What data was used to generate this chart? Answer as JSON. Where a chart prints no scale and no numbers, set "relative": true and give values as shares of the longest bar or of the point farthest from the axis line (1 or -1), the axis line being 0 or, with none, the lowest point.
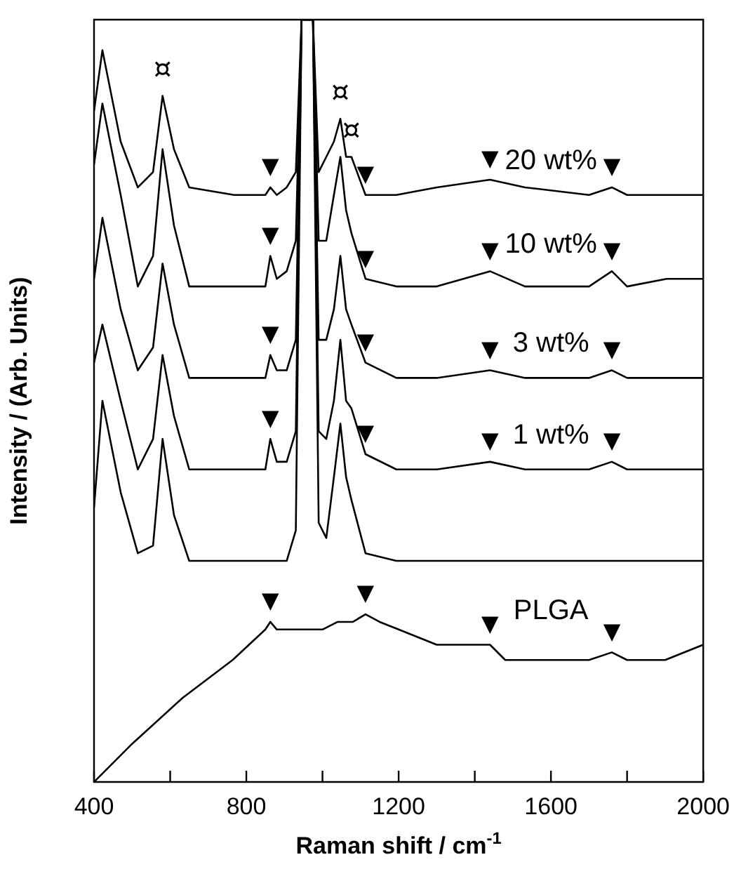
{
  "chart_data": {
    "type": "line",
    "relative": true,
    "xlabel": "Raman shift / cm$^{-1}$",
    "ylabel": "Intensity / (Arb. Units)",
    "xlim": [
      400,
      2000
    ],
    "xticks": [
      400,
      {
        "value": 600,
        "label": null
      },
      800,
      {
        "value": 1000,
        "label": null
      },
      1200,
      {
        "value": 1400,
        "label": null
      },
      1600,
      {
        "value": 1800,
        "label": null
      },
      2000
    ],
    "grid": false,
    "legend": false,
    "marker": "none",
    "line_style": "solid",
    "series": [
      {
        "name": "20 wt%",
        "color": "#000000",
        "x": [
          400,
          422,
          470,
          515,
          555,
          580,
          610,
          650,
          768,
          850,
          863,
          880,
          906,
          930,
          945,
          960,
          975,
          990,
          1010,
          1030,
          1047,
          1062,
          1076,
          1113,
          1194,
          1300,
          1440,
          1532,
          1700,
          1760,
          1800,
          1904,
          2000
        ],
        "values": [
          0.88,
          0.96,
          0.84,
          0.78,
          0.8,
          0.9,
          0.83,
          0.78,
          0.77,
          0.77,
          0.78,
          0.77,
          0.78,
          0.8,
          1,
          1,
          1,
          0.8,
          0.82,
          0.84,
          0.87,
          0.82,
          0.82,
          0.77,
          0.77,
          0.78,
          0.79,
          0.78,
          0.77,
          0.78,
          0.77,
          0.77,
          0.77
        ]
      },
      {
        "name": "10 wt%",
        "color": "#000000",
        "x": [
          400,
          422,
          470,
          515,
          555,
          580,
          610,
          650,
          768,
          850,
          863,
          880,
          906,
          930,
          945,
          960,
          975,
          990,
          1010,
          1030,
          1047,
          1062,
          1076,
          1113,
          1194,
          1300,
          1440,
          1532,
          1700,
          1760,
          1800,
          1904,
          2000
        ],
        "values": [
          0.81,
          0.89,
          0.77,
          0.65,
          0.69,
          0.83,
          0.73,
          0.65,
          0.65,
          0.65,
          0.69,
          0.66,
          0.67,
          0.71,
          1,
          1,
          1,
          0.71,
          0.71,
          0.77,
          0.82,
          0.75,
          0.72,
          0.66,
          0.65,
          0.65,
          0.67,
          0.65,
          0.65,
          0.67,
          0.65,
          0.66,
          0.66
        ]
      },
      {
        "name": "3 wt%",
        "color": "#000000",
        "x": [
          400,
          422,
          470,
          515,
          555,
          580,
          610,
          650,
          768,
          850,
          863,
          880,
          906,
          930,
          945,
          960,
          975,
          990,
          1010,
          1030,
          1047,
          1062,
          1076,
          1113,
          1194,
          1300,
          1440,
          1532,
          1700,
          1760,
          1800,
          1904,
          2000
        ],
        "values": [
          0.66,
          0.74,
          0.62,
          0.54,
          0.57,
          0.68,
          0.6,
          0.53,
          0.53,
          0.53,
          0.56,
          0.54,
          0.54,
          0.58,
          1,
          1,
          1,
          0.58,
          0.58,
          0.62,
          0.69,
          0.62,
          0.6,
          0.55,
          0.53,
          0.53,
          0.54,
          0.53,
          0.53,
          0.54,
          0.53,
          0.53,
          0.53
        ]
      },
      {
        "name": "1 wt%",
        "color": "#000000",
        "x": [
          400,
          422,
          470,
          515,
          555,
          580,
          610,
          650,
          768,
          850,
          863,
          880,
          906,
          930,
          945,
          960,
          975,
          990,
          1010,
          1030,
          1047,
          1062,
          1076,
          1113,
          1194,
          1300,
          1440,
          1532,
          1700,
          1760,
          1800,
          1904,
          2000
        ],
        "values": [
          0.55,
          0.6,
          0.5,
          0.41,
          0.45,
          0.56,
          0.48,
          0.41,
          0.41,
          0.41,
          0.45,
          0.42,
          0.42,
          0.46,
          1,
          1,
          1,
          0.46,
          0.45,
          0.5,
          0.58,
          0.5,
          0.49,
          0.43,
          0.41,
          0.41,
          0.42,
          0.41,
          0.41,
          0.42,
          0.41,
          0.41,
          0.41
        ]
      },
      {
        "color": "#000000",
        "x": [
          400,
          422,
          470,
          515,
          555,
          580,
          610,
          650,
          768,
          850,
          863,
          880,
          906,
          930,
          945,
          960,
          975,
          990,
          1010,
          1030,
          1047,
          1062,
          1076,
          1113,
          1194,
          1300,
          1440,
          1532,
          1700,
          1760,
          1800,
          1904,
          2000
        ],
        "values": [
          0.36,
          0.5,
          0.38,
          0.3,
          0.31,
          0.45,
          0.35,
          0.29,
          0.29,
          0.29,
          0.29,
          0.29,
          0.29,
          0.33,
          1,
          1,
          1,
          0.34,
          0.32,
          0.4,
          0.47,
          0.4,
          0.37,
          0.3,
          0.29,
          0.29,
          0.29,
          0.29,
          0.29,
          0.29,
          0.29,
          0.29,
          0.29
        ]
      },
      {
        "name": "PLGA",
        "color": "#000000",
        "x": [
          400,
          500,
          632,
          764,
          850,
          863,
          880,
          1000,
          1040,
          1080,
          1113,
          1150,
          1200,
          1300,
          1440,
          1480,
          1532,
          1700,
          1760,
          1800,
          1900,
          2000
        ],
        "values": [
          0,
          0.05,
          0.11,
          0.16,
          0.2,
          0.21,
          0.2,
          0.2,
          0.21,
          0.21,
          0.22,
          0.21,
          0.2,
          0.18,
          0.18,
          0.16,
          0.16,
          0.16,
          0.17,
          0.16,
          0.16,
          0.18
        ]
      }
    ],
    "annotations": [
      {
        "text": "¤",
        "x": 580,
        "y": 0.9
      },
      {
        "text": "¤",
        "x": 1047,
        "y": 0.87
      },
      {
        "text": "¤",
        "x": 1076,
        "y": 0.82
      },
      {
        "text": "▼",
        "x": 863,
        "y": 0.78
      },
      {
        "text": "▼",
        "x": 1113,
        "y": 0.77
      },
      {
        "text": "▼",
        "x": 1440,
        "y": 0.79
      },
      {
        "text": "▼",
        "x": 1760,
        "y": 0.78
      },
      {
        "text": "▼",
        "x": 863,
        "y": 0.69
      },
      {
        "text": "▼",
        "x": 1113,
        "y": 0.66
      },
      {
        "text": "▼",
        "x": 1440,
        "y": 0.67
      },
      {
        "text": "▼",
        "x": 1760,
        "y": 0.67
      },
      {
        "text": "▼",
        "x": 863,
        "y": 0.56
      },
      {
        "text": "▼",
        "x": 1113,
        "y": 0.55
      },
      {
        "text": "▼",
        "x": 1440,
        "y": 0.54
      },
      {
        "text": "▼",
        "x": 1760,
        "y": 0.54
      },
      {
        "text": "▼",
        "x": 863,
        "y": 0.45
      },
      {
        "text": "▼",
        "x": 1113,
        "y": 0.43
      },
      {
        "text": "▼",
        "x": 1440,
        "y": 0.42
      },
      {
        "text": "▼",
        "x": 1760,
        "y": 0.42
      },
      {
        "text": "▼",
        "x": 863,
        "y": 0.21
      },
      {
        "text": "▼",
        "x": 1113,
        "y": 0.22
      },
      {
        "text": "▼",
        "x": 1440,
        "y": 0.18
      },
      {
        "text": "▼",
        "x": 1760,
        "y": 0.17
      }
    ]
  }
}
